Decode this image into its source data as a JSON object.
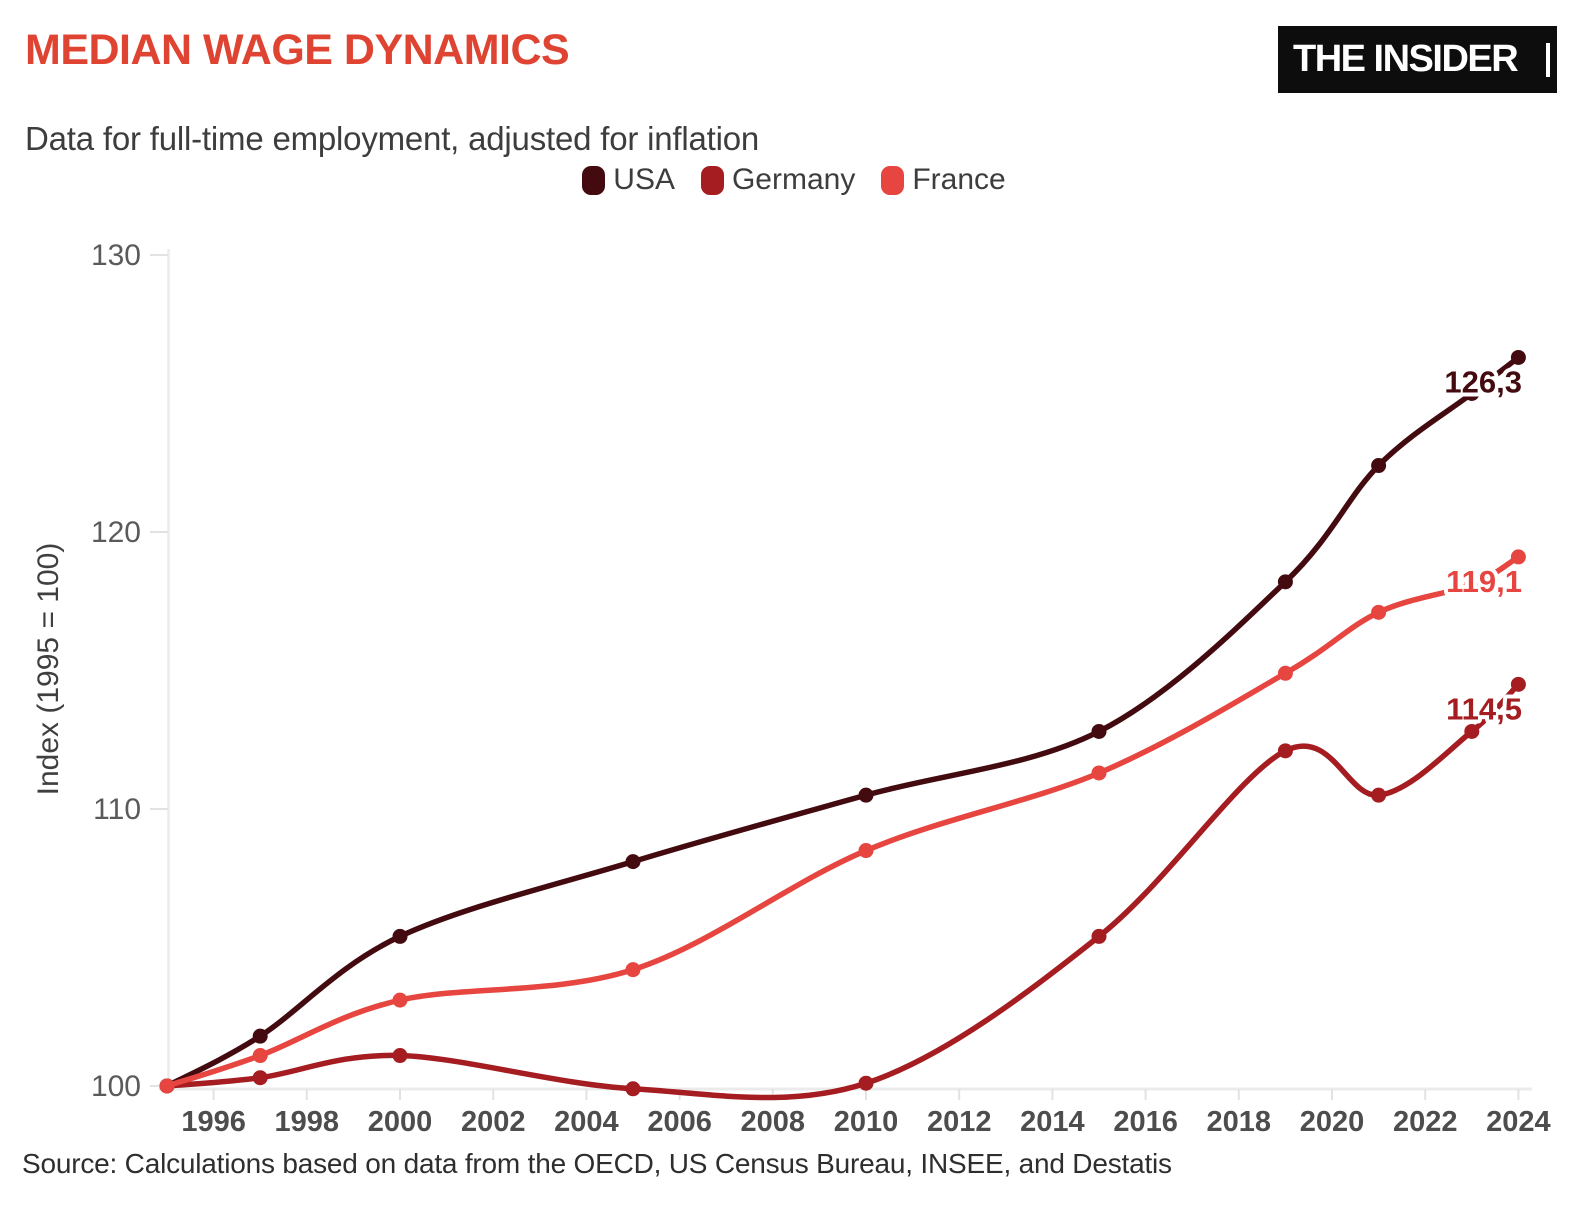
{
  "header": {
    "title": "MEDIAN WAGE DYNAMICS",
    "subtitle": "Data for full-time employment, adjusted for inflation",
    "logo": "THE INSIDER"
  },
  "legend": [
    {
      "label": "USA",
      "color": "#430b10"
    },
    {
      "label": "Germany",
      "color": "#a51c21"
    },
    {
      "label": "France",
      "color": "#e64540"
    }
  ],
  "footer": {
    "source": "Source: Calculations based on data from the OECD, US Census Bureau, INSEE, and Destatis"
  },
  "colors": {
    "title_accent": "#df4433",
    "logo_bg": "#0d0d0d",
    "axis_line": "#ebebeb",
    "tick_mark": "#e2e2e2",
    "y_tick_label": "#5a5a5a",
    "x_tick_label": "#4d4d4d",
    "axis_title": "#3f3f3f"
  },
  "chart_data": {
    "type": "line",
    "title": "MEDIAN WAGE DYNAMICS",
    "subtitle": "Data for full-time employment, adjusted for inflation",
    "xlabel": "",
    "ylabel": "Index (1995 = 100)",
    "x_range": [
      1995,
      2024
    ],
    "ylim": [
      100,
      130
    ],
    "yticks": [
      100,
      110,
      120,
      130
    ],
    "xticks": [
      1996,
      1998,
      2000,
      2002,
      2004,
      2006,
      2008,
      2010,
      2012,
      2014,
      2016,
      2018,
      2020,
      2022,
      2024
    ],
    "grid": false,
    "legend_position": "top",
    "x": [
      1995,
      1997,
      2000,
      2005,
      2010,
      2015,
      2019,
      2021,
      2023,
      2024
    ],
    "series": [
      {
        "name": "USA",
        "color": "#430b10",
        "values": [
          100,
          101.8,
          105.4,
          108.1,
          110.5,
          112.8,
          118.2,
          122.4,
          125.0,
          126.3
        ],
        "end_label": "126,3"
      },
      {
        "name": "Germany",
        "color": "#a51c21",
        "values": [
          100,
          100.3,
          101.1,
          99.9,
          100.1,
          105.4,
          112.1,
          110.5,
          112.8,
          114.5
        ],
        "end_label": "114,5"
      },
      {
        "name": "France",
        "color": "#e64540",
        "values": [
          100,
          101.1,
          103.1,
          104.2,
          108.5,
          111.3,
          114.9,
          117.1,
          118.1,
          119.1
        ],
        "end_label": "119,1"
      }
    ]
  }
}
